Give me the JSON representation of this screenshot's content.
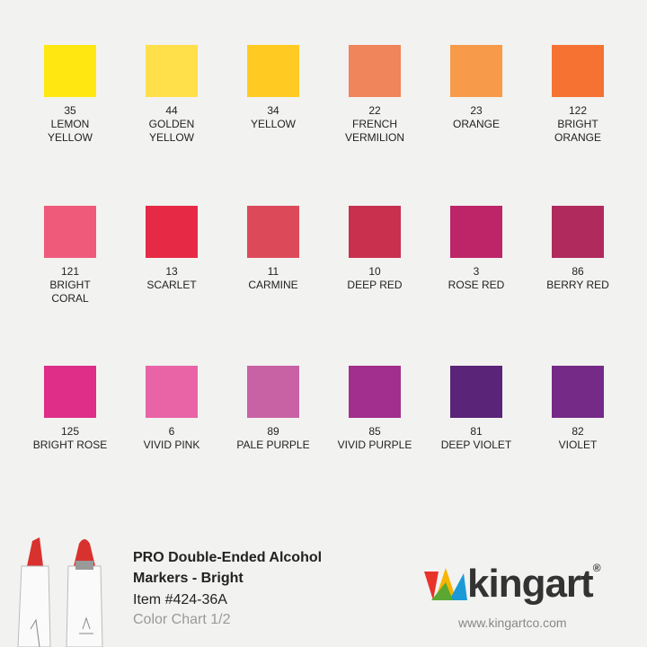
{
  "swatches": [
    {
      "number": "35",
      "name_lines": [
        "LEMON",
        "YELLOW"
      ],
      "color": "#FFE812"
    },
    {
      "number": "44",
      "name_lines": [
        "GOLDEN",
        "YELLOW"
      ],
      "color": "#FFE04A"
    },
    {
      "number": "34",
      "name_lines": [
        "YELLOW"
      ],
      "color": "#FFCB22"
    },
    {
      "number": "22",
      "name_lines": [
        "FRENCH",
        "VERMILION"
      ],
      "color": "#F0845A"
    },
    {
      "number": "23",
      "name_lines": [
        "ORANGE"
      ],
      "color": "#F79A4A"
    },
    {
      "number": "122",
      "name_lines": [
        "BRIGHT",
        "ORANGE"
      ],
      "color": "#F57232"
    },
    {
      "number": "121",
      "name_lines": [
        "BRIGHT",
        "CORAL"
      ],
      "color": "#F05A7A"
    },
    {
      "number": "13",
      "name_lines": [
        "SCARLET"
      ],
      "color": "#E62A45"
    },
    {
      "number": "11",
      "name_lines": [
        "CARMINE"
      ],
      "color": "#DC4A5A"
    },
    {
      "number": "10",
      "name_lines": [
        "DEEP RED"
      ],
      "color": "#C8304E"
    },
    {
      "number": "3",
      "name_lines": [
        "ROSE RED"
      ],
      "color": "#BE2468"
    },
    {
      "number": "86",
      "name_lines": [
        "BERRY RED"
      ],
      "color": "#B02A5E"
    },
    {
      "number": "125",
      "name_lines": [
        "BRIGHT ROSE"
      ],
      "color": "#DE2E88"
    },
    {
      "number": "6",
      "name_lines": [
        "VIVID PINK"
      ],
      "color": "#E864A6"
    },
    {
      "number": "89",
      "name_lines": [
        "PALE PURPLE"
      ],
      "color": "#C862A4"
    },
    {
      "number": "85",
      "name_lines": [
        "VIVID PURPLE"
      ],
      "color": "#A22E8E"
    },
    {
      "number": "81",
      "name_lines": [
        "DEEP VIOLET"
      ],
      "color": "#5A2478"
    },
    {
      "number": "82",
      "name_lines": [
        "VIOLET"
      ],
      "color": "#742A86"
    }
  ],
  "footer": {
    "title_lines": [
      "PRO Double-Ended Alcohol",
      "Markers - Bright"
    ],
    "item": "Item #424-36A",
    "chart": "Color Chart 1/2"
  },
  "logo": {
    "text": "kingart",
    "mark": "®",
    "url": "www.kingartco.com"
  }
}
